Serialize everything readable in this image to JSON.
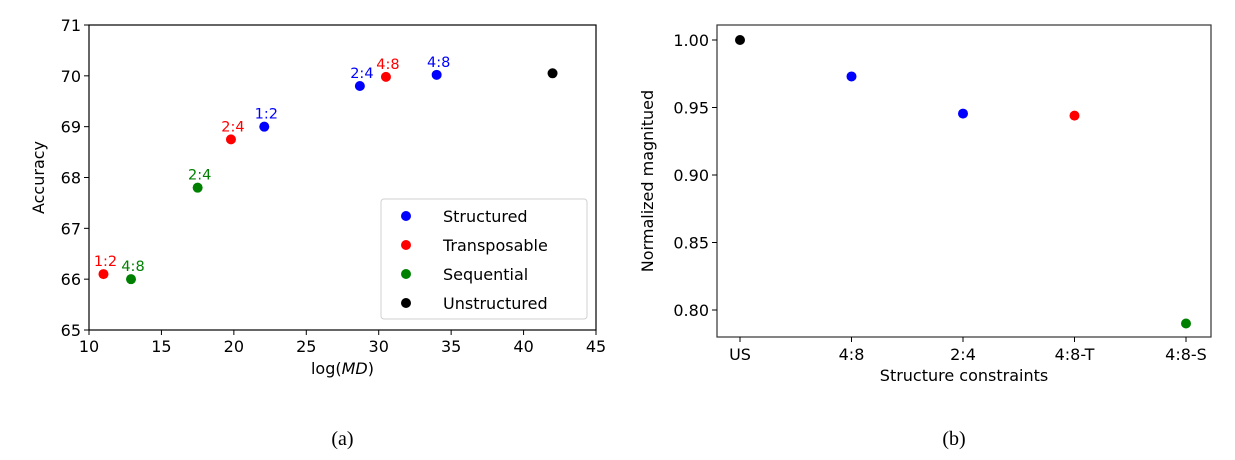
{
  "chart_data": [
    {
      "type": "scatter",
      "panel": "(a)",
      "title": "",
      "xlabel": "log(MD)",
      "ylabel": "Accuracy",
      "xlim": [
        10,
        45
      ],
      "ylim": [
        65,
        71
      ],
      "xticks": [
        10,
        15,
        20,
        25,
        30,
        35,
        40,
        45
      ],
      "yticks": [
        65,
        66,
        67,
        68,
        69,
        70,
        71
      ],
      "grid": false,
      "legend_position": "lower right",
      "series": [
        {
          "name": "Structured",
          "color": "#0000ff",
          "points": [
            {
              "x": 22.1,
              "y": 69.0,
              "label": "1:2"
            },
            {
              "x": 28.7,
              "y": 69.8,
              "label": "2:4"
            },
            {
              "x": 34.0,
              "y": 70.02,
              "label": "4:8"
            }
          ]
        },
        {
          "name": "Transposable",
          "color": "#ff0000",
          "points": [
            {
              "x": 11.0,
              "y": 66.1,
              "label": "1:2"
            },
            {
              "x": 19.8,
              "y": 68.75,
              "label": "2:4"
            },
            {
              "x": 30.5,
              "y": 69.98,
              "label": "4:8"
            }
          ]
        },
        {
          "name": "Sequential",
          "color": "#008000",
          "points": [
            {
              "x": 12.9,
              "y": 66.0,
              "label": "4:8"
            },
            {
              "x": 17.5,
              "y": 67.8,
              "label": "2:4"
            }
          ]
        },
        {
          "name": "Unstructured",
          "color": "#000000",
          "points": [
            {
              "x": 42.0,
              "y": 70.05,
              "label": ""
            }
          ]
        }
      ]
    },
    {
      "type": "scatter",
      "panel": "(b)",
      "title": "",
      "xlabel": "Structure constraints",
      "ylabel": "Normalized magnitued",
      "categories": [
        "US",
        "4:8",
        "2:4",
        "4:8-T",
        "4:8-S"
      ],
      "ylim": [
        0.78,
        1.01
      ],
      "yticks": [
        0.8,
        0.85,
        0.9,
        0.95,
        1.0
      ],
      "grid": false,
      "points": [
        {
          "x": "US",
          "y": 1.0,
          "color": "#000000"
        },
        {
          "x": "4:8",
          "y": 0.973,
          "color": "#0000ff"
        },
        {
          "x": "2:4",
          "y": 0.9455,
          "color": "#0000ff"
        },
        {
          "x": "4:8-T",
          "y": 0.944,
          "color": "#ff0000"
        },
        {
          "x": "4:8-S",
          "y": 0.79,
          "color": "#008000"
        }
      ]
    }
  ],
  "captions": {
    "a": "(a)",
    "b": "(b)"
  }
}
